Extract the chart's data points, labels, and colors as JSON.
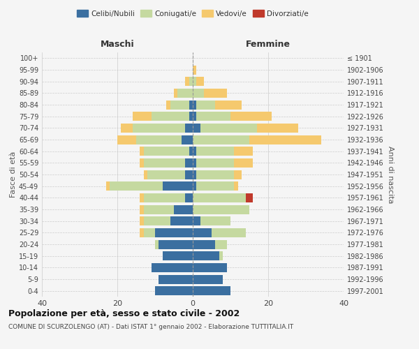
{
  "age_groups": [
    "0-4",
    "5-9",
    "10-14",
    "15-19",
    "20-24",
    "25-29",
    "30-34",
    "35-39",
    "40-44",
    "45-49",
    "50-54",
    "55-59",
    "60-64",
    "65-69",
    "70-74",
    "75-79",
    "80-84",
    "85-89",
    "90-94",
    "95-99",
    "100+"
  ],
  "birth_years": [
    "1997-2001",
    "1992-1996",
    "1987-1991",
    "1982-1986",
    "1977-1981",
    "1972-1976",
    "1967-1971",
    "1962-1966",
    "1957-1961",
    "1952-1956",
    "1947-1951",
    "1942-1946",
    "1937-1941",
    "1932-1936",
    "1927-1931",
    "1922-1926",
    "1917-1921",
    "1912-1916",
    "1907-1911",
    "1902-1906",
    "≤ 1901"
  ],
  "maschi": {
    "celibi": [
      10,
      9,
      11,
      8,
      9,
      10,
      6,
      5,
      2,
      8,
      2,
      2,
      1,
      3,
      2,
      1,
      1,
      0,
      0,
      0,
      0
    ],
    "coniugati": [
      0,
      0,
      0,
      0,
      1,
      3,
      7,
      8,
      11,
      14,
      10,
      11,
      12,
      12,
      14,
      10,
      5,
      4,
      1,
      0,
      0
    ],
    "vedovi": [
      0,
      0,
      0,
      0,
      0,
      1,
      1,
      1,
      1,
      1,
      1,
      1,
      1,
      5,
      3,
      5,
      1,
      1,
      1,
      0,
      0
    ],
    "divorziati": [
      0,
      0,
      0,
      0,
      0,
      0,
      0,
      0,
      0,
      0,
      0,
      0,
      0,
      0,
      0,
      0,
      0,
      0,
      0,
      0,
      0
    ]
  },
  "femmine": {
    "nubili": [
      10,
      8,
      9,
      7,
      6,
      5,
      2,
      0,
      0,
      1,
      1,
      1,
      1,
      0,
      2,
      1,
      1,
      0,
      0,
      0,
      0
    ],
    "coniugate": [
      0,
      0,
      0,
      1,
      3,
      9,
      8,
      15,
      14,
      10,
      10,
      10,
      10,
      15,
      15,
      9,
      5,
      3,
      1,
      0,
      0
    ],
    "vedove": [
      0,
      0,
      0,
      0,
      0,
      0,
      0,
      0,
      0,
      1,
      2,
      5,
      5,
      19,
      11,
      11,
      7,
      6,
      2,
      1,
      0
    ],
    "divorziate": [
      0,
      0,
      0,
      0,
      0,
      0,
      0,
      0,
      2,
      0,
      0,
      0,
      0,
      0,
      0,
      0,
      0,
      0,
      0,
      0,
      0
    ]
  },
  "colors": {
    "celibi": "#3b6fa0",
    "coniugati": "#c5d9a0",
    "vedovi": "#f5c96e",
    "divorziati": "#c0392b"
  },
  "title": "Popolazione per età, sesso e stato civile - 2002",
  "subtitle": "COMUNE DI SCURZOLENGO (AT) - Dati ISTAT 1° gennaio 2002 - Elaborazione TUTTITALIA.IT",
  "xlabel_left": "Maschi",
  "xlabel_right": "Femmine",
  "ylabel": "Fasce di età",
  "ylabel_right": "Anni di nascita",
  "xlim": 40,
  "bg_color": "#f5f5f5",
  "plot_bg": "#f5f5f5",
  "grid_color": "#cccccc"
}
